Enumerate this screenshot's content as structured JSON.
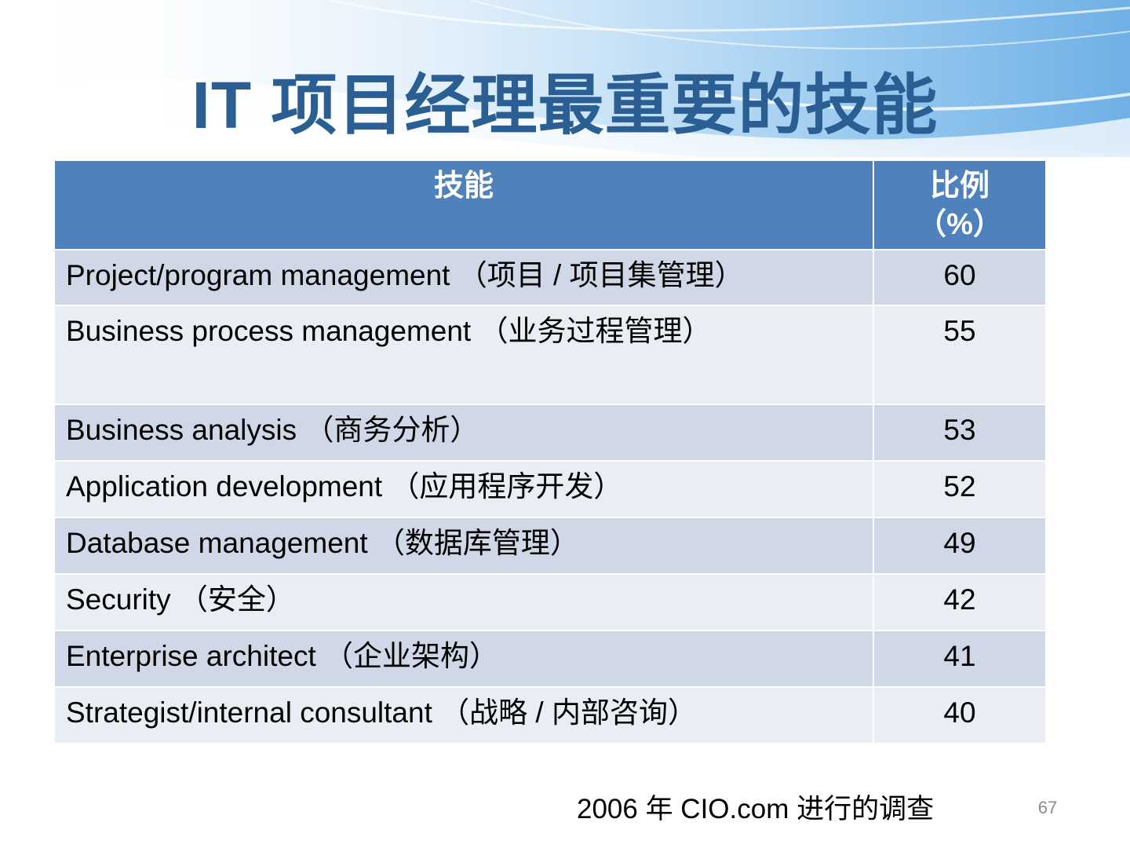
{
  "slide": {
    "title": "IT 项目经理最重要的技能",
    "source": "2006 年 CIO.com 进行的调查",
    "page_number": "67"
  },
  "table": {
    "headers": {
      "skill": "技能",
      "percent": "比例",
      "percent_unit": "（%）"
    },
    "rows": [
      {
        "skill": "Project/program management （项目 / 项目集管理）",
        "percent": "60"
      },
      {
        "skill": "Business process management （业务过程管理）",
        "percent": "55"
      },
      {
        "skill": "Business analysis （商务分析）",
        "percent": "53"
      },
      {
        "skill": "Application development （应用程序开发）",
        "percent": "52"
      },
      {
        "skill": "Database management （数据库管理）",
        "percent": "49"
      },
      {
        "skill": "Security （安全）",
        "percent": "42"
      },
      {
        "skill": "Enterprise architect （企业架构）",
        "percent": "41"
      },
      {
        "skill": "Strategist/internal consultant （战略 / 内部咨询）",
        "percent": "40"
      }
    ]
  },
  "colors": {
    "title": "#2b5f93",
    "header_bg": "#4f81bd",
    "row_odd": "#d0d8e8",
    "row_even": "#e9edf4",
    "background_accent": "#8fc3ee"
  }
}
